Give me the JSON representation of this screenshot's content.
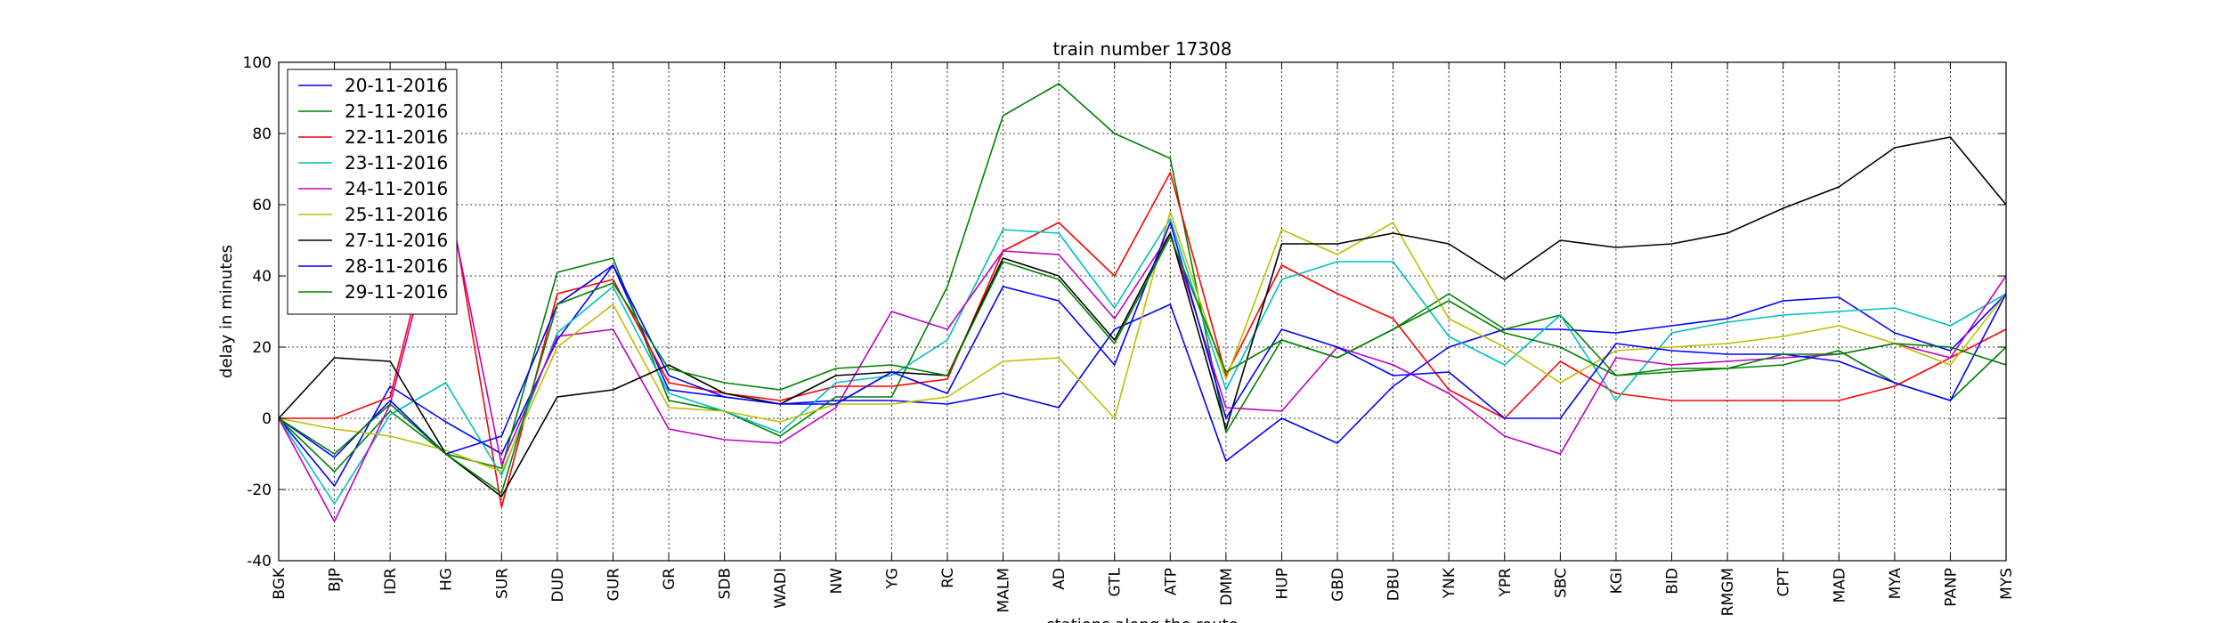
{
  "chart_data": {
    "type": "line",
    "title": "train number 17308",
    "xlabel": "stations along the route",
    "ylabel": "delay in minutes",
    "ylim": [
      -40,
      100
    ],
    "yticks": [
      -40,
      -20,
      0,
      20,
      40,
      60,
      80,
      100
    ],
    "grid": true,
    "legend_position": "top-left",
    "categories": [
      "BGK",
      "BJP",
      "IDR",
      "HG",
      "SUR",
      "DUD",
      "GUR",
      "GR",
      "SDB",
      "WADI",
      "NW",
      "YG",
      "RC",
      "MALM",
      "AD",
      "GTL",
      "ATP",
      "DMM",
      "HUP",
      "GBD",
      "DBU",
      "YNK",
      "YPR",
      "SBC",
      "KGI",
      "BID",
      "RMGM",
      "CPT",
      "MAD",
      "MYA",
      "PANP",
      "MYS"
    ],
    "series": [
      {
        "name": "20-11-2016",
        "color": "#0000ff",
        "values": [
          0,
          -19,
          9,
          -1,
          -10,
          22,
          43,
          8,
          6,
          4,
          5,
          5,
          4,
          7,
          3,
          25,
          32,
          -12,
          0,
          -7,
          9,
          20,
          25,
          25,
          24,
          26,
          28,
          33,
          34,
          24,
          19,
          35
        ]
      },
      {
        "name": "21-11-2016",
        "color": "#008000",
        "values": [
          0,
          -15,
          2,
          -10,
          -14,
          41,
          45,
          5,
          2,
          -5,
          6,
          6,
          37,
          85,
          94,
          80,
          73,
          -4,
          22,
          17,
          25,
          35,
          25,
          29,
          12,
          13,
          14,
          15,
          19,
          10,
          5,
          20
        ]
      },
      {
        "name": "22-11-2016",
        "color": "#ff0000",
        "values": [
          0,
          0,
          6,
          68,
          -25,
          35,
          39,
          10,
          7,
          5,
          9,
          9,
          11,
          47,
          55,
          40,
          69,
          12,
          43,
          35,
          28,
          8,
          0,
          16,
          7,
          5,
          5,
          5,
          5,
          9,
          17,
          25
        ]
      },
      {
        "name": "23-11-2016",
        "color": "#00bfbf",
        "values": [
          0,
          -24,
          1,
          10,
          -16,
          24,
          37,
          7,
          2,
          -4,
          10,
          12,
          22,
          53,
          52,
          31,
          56,
          8,
          39,
          44,
          44,
          23,
          15,
          29,
          5,
          24,
          27,
          29,
          30,
          31,
          26,
          35
        ]
      },
      {
        "name": "24-11-2016",
        "color": "#bf00bf",
        "values": [
          0,
          -29,
          4,
          65,
          -13,
          23,
          25,
          -3,
          -6,
          -7,
          3,
          30,
          25,
          47,
          46,
          28,
          52,
          3,
          2,
          20,
          15,
          7,
          -5,
          -10,
          17,
          15,
          16,
          17,
          18,
          21,
          17,
          40
        ]
      },
      {
        "name": "25-11-2016",
        "color": "#bfbf00",
        "values": [
          0,
          -3,
          -5,
          -9,
          -15,
          20,
          32,
          3,
          2,
          -1,
          4,
          4,
          6,
          16,
          17,
          0,
          58,
          11,
          53,
          46,
          55,
          28,
          20,
          10,
          19,
          20,
          21,
          23,
          26,
          21,
          15,
          35
        ]
      },
      {
        "name": "27-11-2016",
        "color": "#000000",
        "values": [
          0,
          17,
          16,
          -10,
          -22,
          6,
          8,
          15,
          7,
          4,
          12,
          13,
          12,
          45,
          40,
          22,
          52,
          -3,
          49,
          49,
          52,
          49,
          39,
          50,
          48,
          49,
          52,
          59,
          65,
          76,
          79,
          60
        ]
      },
      {
        "name": "28-11-2016",
        "color": "#0000ff",
        "values": [
          0,
          -11,
          5,
          -10,
          -5,
          32,
          43,
          12,
          6,
          4,
          4,
          13,
          7,
          37,
          33,
          15,
          55,
          0,
          25,
          20,
          12,
          13,
          0,
          0,
          21,
          19,
          18,
          18,
          16,
          10,
          5,
          35
        ]
      },
      {
        "name": "29-11-2016",
        "color": "#008000",
        "values": [
          0,
          -10,
          4,
          -10,
          -21,
          32,
          38,
          14,
          10,
          8,
          14,
          15,
          12,
          44,
          39,
          21,
          51,
          13,
          22,
          17,
          25,
          33,
          24,
          20,
          12,
          14,
          14,
          18,
          18,
          21,
          20,
          15
        ]
      }
    ]
  }
}
